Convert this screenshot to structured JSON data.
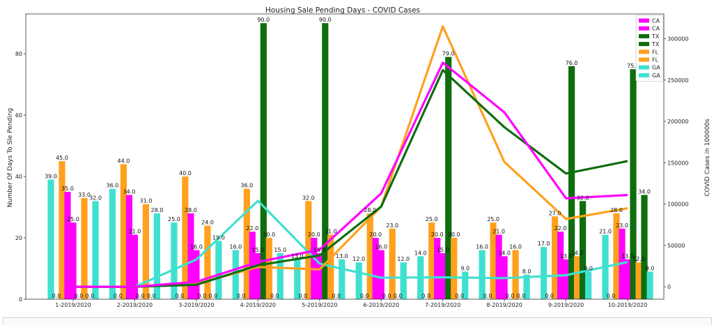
{
  "chart_data": {
    "type": "bar",
    "title": "Housing Sale Pending Days - COVID Cases",
    "ylabel": "Number Of Days To Sle Pending",
    "y2label": "COVID Cases in 100000s",
    "categories": [
      "1-2019/2020",
      "2-2019/2020",
      "3-2019/2020",
      "4-2019/2020",
      "5-2019/2020",
      "6-2019/2020",
      "7-2019/2020",
      "8-2019/2020",
      "9-2019/2020",
      "10-2019/2020"
    ],
    "ylim": [
      0,
      93
    ],
    "y2lim": [
      -15000,
      330000
    ],
    "yticks": [
      0,
      20,
      40,
      60,
      80
    ],
    "y2ticks": [
      0,
      50000,
      100000,
      150000,
      200000,
      250000,
      300000
    ],
    "bar_series": [
      {
        "state": "GA",
        "color": "#40e0d0",
        "values": [
          39,
          36,
          25,
          16,
          13,
          12,
          14,
          16,
          17,
          21
        ],
        "labels": [
          "39.0",
          "36.0",
          "25.0",
          "16.0",
          "13.0",
          "12.0",
          "14.0",
          "16.0",
          "17.0",
          "21.0"
        ]
      },
      {
        "state": "GA",
        "color": "#40e0d0",
        "values": [
          0,
          0,
          0,
          0,
          0,
          0,
          0,
          0,
          0,
          0
        ],
        "labels": [
          "0.0",
          "0.0",
          "0.0",
          "0.0",
          "0.0",
          "0.0",
          "0.0",
          "0.0",
          "0.0",
          "0.0"
        ]
      },
      {
        "state": "FL",
        "color": "#ffa01e",
        "values": [
          45,
          44,
          40,
          36,
          32,
          28,
          25,
          25,
          27,
          28
        ],
        "labels": [
          "45.0",
          "44.0",
          "40.0",
          "36.0",
          "32.0",
          "28.0",
          "25.0",
          "25.0",
          "27.0",
          "28.0"
        ]
      },
      {
        "state": "CA",
        "color": "#ff00ff",
        "values": [
          35,
          34,
          28,
          22,
          20,
          20,
          20,
          21,
          22,
          23
        ],
        "labels": [
          "35.0",
          "34.0",
          "28.0",
          "22.0",
          "20.0",
          "20.0",
          "20.0",
          "21.0",
          "22.0",
          "23.0"
        ]
      },
      {
        "state": "CA",
        "color": "#ff00ff",
        "values": [
          25,
          21,
          16,
          15,
          15,
          16,
          15,
          14,
          13,
          13
        ],
        "labels": [
          "25.0",
          "21.0",
          "16.0",
          "15.0",
          "15.0",
          "16.0",
          "15.0",
          "14.0",
          "13.0",
          "13.0"
        ]
      },
      {
        "state": "TX",
        "color": "#0e6e0e",
        "values": [
          0,
          0,
          0,
          90,
          90,
          0,
          79,
          0,
          76,
          75
        ],
        "labels": [
          "0.0",
          "0.0",
          "0.0",
          "90.0",
          "90.0",
          "0.0",
          "79.0",
          "0.0",
          "76.0",
          "75.0"
        ]
      },
      {
        "state": "FL",
        "color": "#ffa01e",
        "values": [
          33,
          31,
          24,
          20,
          21,
          23,
          20,
          16,
          14,
          12
        ],
        "labels": [
          "33.0",
          "31.0",
          "24.0",
          "20.0",
          "21.0",
          "23.0",
          "20.0",
          "16.0",
          "14.0",
          "12.0"
        ]
      },
      {
        "state": "TX",
        "color": "#0e6e0e",
        "values": [
          0,
          0,
          0,
          0,
          0,
          0,
          0,
          0,
          32,
          34
        ],
        "labels": [
          "0.0",
          "0.0",
          "0.0",
          "0.0",
          "0.0",
          "0.0",
          "0.0",
          "0.0",
          "32.0",
          "34.0"
        ]
      },
      {
        "state": "GA",
        "color": "#40e0d0",
        "values": [
          32,
          28,
          19,
          15,
          13,
          12,
          9,
          8,
          9,
          9
        ],
        "labels": [
          "32.0",
          "28.0",
          "19.0",
          "15.0",
          "13.0",
          "12.0",
          "9.0",
          "8.0",
          "9.0",
          "9.0"
        ]
      }
    ],
    "line_series": [
      {
        "state": "GA",
        "color": "#40e0d0",
        "values": [
          0,
          0,
          33000,
          104000,
          28000,
          11000,
          11500,
          10500,
          14000,
          30000
        ]
      },
      {
        "state": "FL",
        "color": "#ffa01e",
        "values": [
          0,
          0,
          3500,
          24000,
          21000,
          97000,
          315000,
          151000,
          82000,
          95000
        ]
      },
      {
        "state": "TX",
        "color": "#0e6e0e",
        "values": [
          0,
          0,
          2500,
          26000,
          38000,
          97000,
          262000,
          193000,
          137000,
          152000
        ]
      },
      {
        "state": "CA",
        "color": "#ff00ff",
        "values": [
          0,
          0,
          6000,
          30000,
          45000,
          113000,
          271000,
          211000,
          107000,
          111000
        ]
      }
    ],
    "legend": {
      "position": "top-right",
      "entries": [
        {
          "label": "CA",
          "color": "#ff00ff",
          "kind": "line"
        },
        {
          "label": "CA",
          "color": "#ff00ff",
          "kind": "bar"
        },
        {
          "label": "TX",
          "color": "#0e6e0e",
          "kind": "line"
        },
        {
          "label": "TX",
          "color": "#0e6e0e",
          "kind": "bar"
        },
        {
          "label": "FL",
          "color": "#ffa01e",
          "kind": "line"
        },
        {
          "label": "FL",
          "color": "#ffa01e",
          "kind": "bar"
        },
        {
          "label": "GA",
          "color": "#40e0d0",
          "kind": "line"
        },
        {
          "label": "GA",
          "color": "#40e0d0",
          "kind": "bar"
        }
      ]
    }
  }
}
